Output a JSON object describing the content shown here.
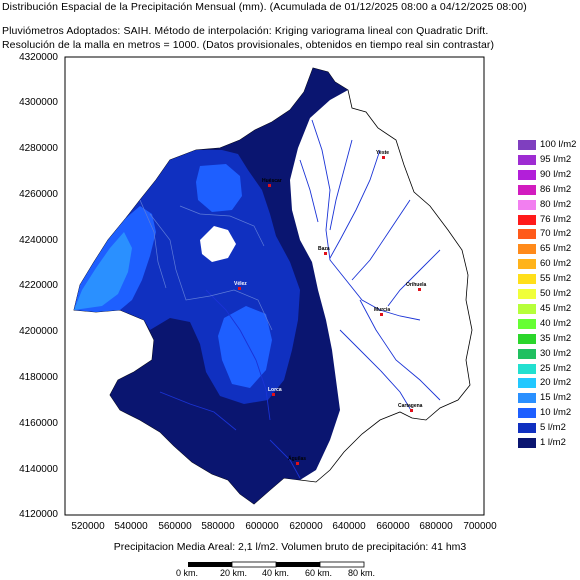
{
  "header": {
    "line1": "Distribución Espacial de la Precipitación Mensual (mm). (Acumulada de 01/12/2025 08:00 a 04/12/2025 08:00)",
    "line2": "Pluviómetros Adoptados: SAIH.  Método de interpolación: Kriging variograma lineal con Quadratic Drift.",
    "line3": "Resolución de la malla en metros = 1000. (Datos provisionales, obtenidos en tiempo real sin contrastar)"
  },
  "axes": {
    "y_ticks": [
      "4320000",
      "4300000",
      "4280000",
      "4260000",
      "4240000",
      "4220000",
      "4200000",
      "4180000",
      "4160000",
      "4140000",
      "4120000"
    ],
    "x_ticks": [
      "520000",
      "540000",
      "560000",
      "580000",
      "600000",
      "620000",
      "640000",
      "660000",
      "680000",
      "700000"
    ]
  },
  "legend": [
    {
      "label": "100 l/m2",
      "color": "#7f3fbf"
    },
    {
      "label": "95 l/m2",
      "color": "#9e2cd2"
    },
    {
      "label": "90 l/m2",
      "color": "#b21fd9"
    },
    {
      "label": "86 l/m2",
      "color": "#d21cbf"
    },
    {
      "label": "80 l/m2",
      "color": "#f27ff0"
    },
    {
      "label": "76 l/m2",
      "color": "#ff1a1a"
    },
    {
      "label": "70 l/m2",
      "color": "#ff5a1a"
    },
    {
      "label": "65 l/m2",
      "color": "#ff8a1a"
    },
    {
      "label": "60 l/m2",
      "color": "#ffb31a"
    },
    {
      "label": "55 l/m2",
      "color": "#ffdf1a"
    },
    {
      "label": "50 l/m2",
      "color": "#f0ff3a"
    },
    {
      "label": "45 l/m2",
      "color": "#b6ff3a"
    },
    {
      "label": "40 l/m2",
      "color": "#66ff33"
    },
    {
      "label": "35 l/m2",
      "color": "#2bd62b"
    },
    {
      "label": "30 l/m2",
      "color": "#20c060"
    },
    {
      "label": "25 l/m2",
      "color": "#22e0d0"
    },
    {
      "label": "20 l/m2",
      "color": "#22c8ff"
    },
    {
      "label": "15 l/m2",
      "color": "#2a90ff"
    },
    {
      "label": "10 l/m2",
      "color": "#1e5fff"
    },
    {
      "label": "5 l/m2",
      "color": "#1030c0"
    },
    {
      "label": "1 l/m2",
      "color": "#0a1570"
    }
  ],
  "towns": [
    "Huéscar",
    "Yeste",
    "Baza",
    "Orihuela",
    "Murcia",
    "Cartagena",
    "Lorca",
    "Águilas",
    "Vélez"
  ],
  "footer": {
    "stat": "Precipitacion Media Areal: 2,1 l/m2. Volumen bruto de precipitación: 41 hm3",
    "scale_labels": [
      "0 km.",
      "20 km.",
      "40 km.",
      "60 km.",
      "80 km."
    ]
  }
}
